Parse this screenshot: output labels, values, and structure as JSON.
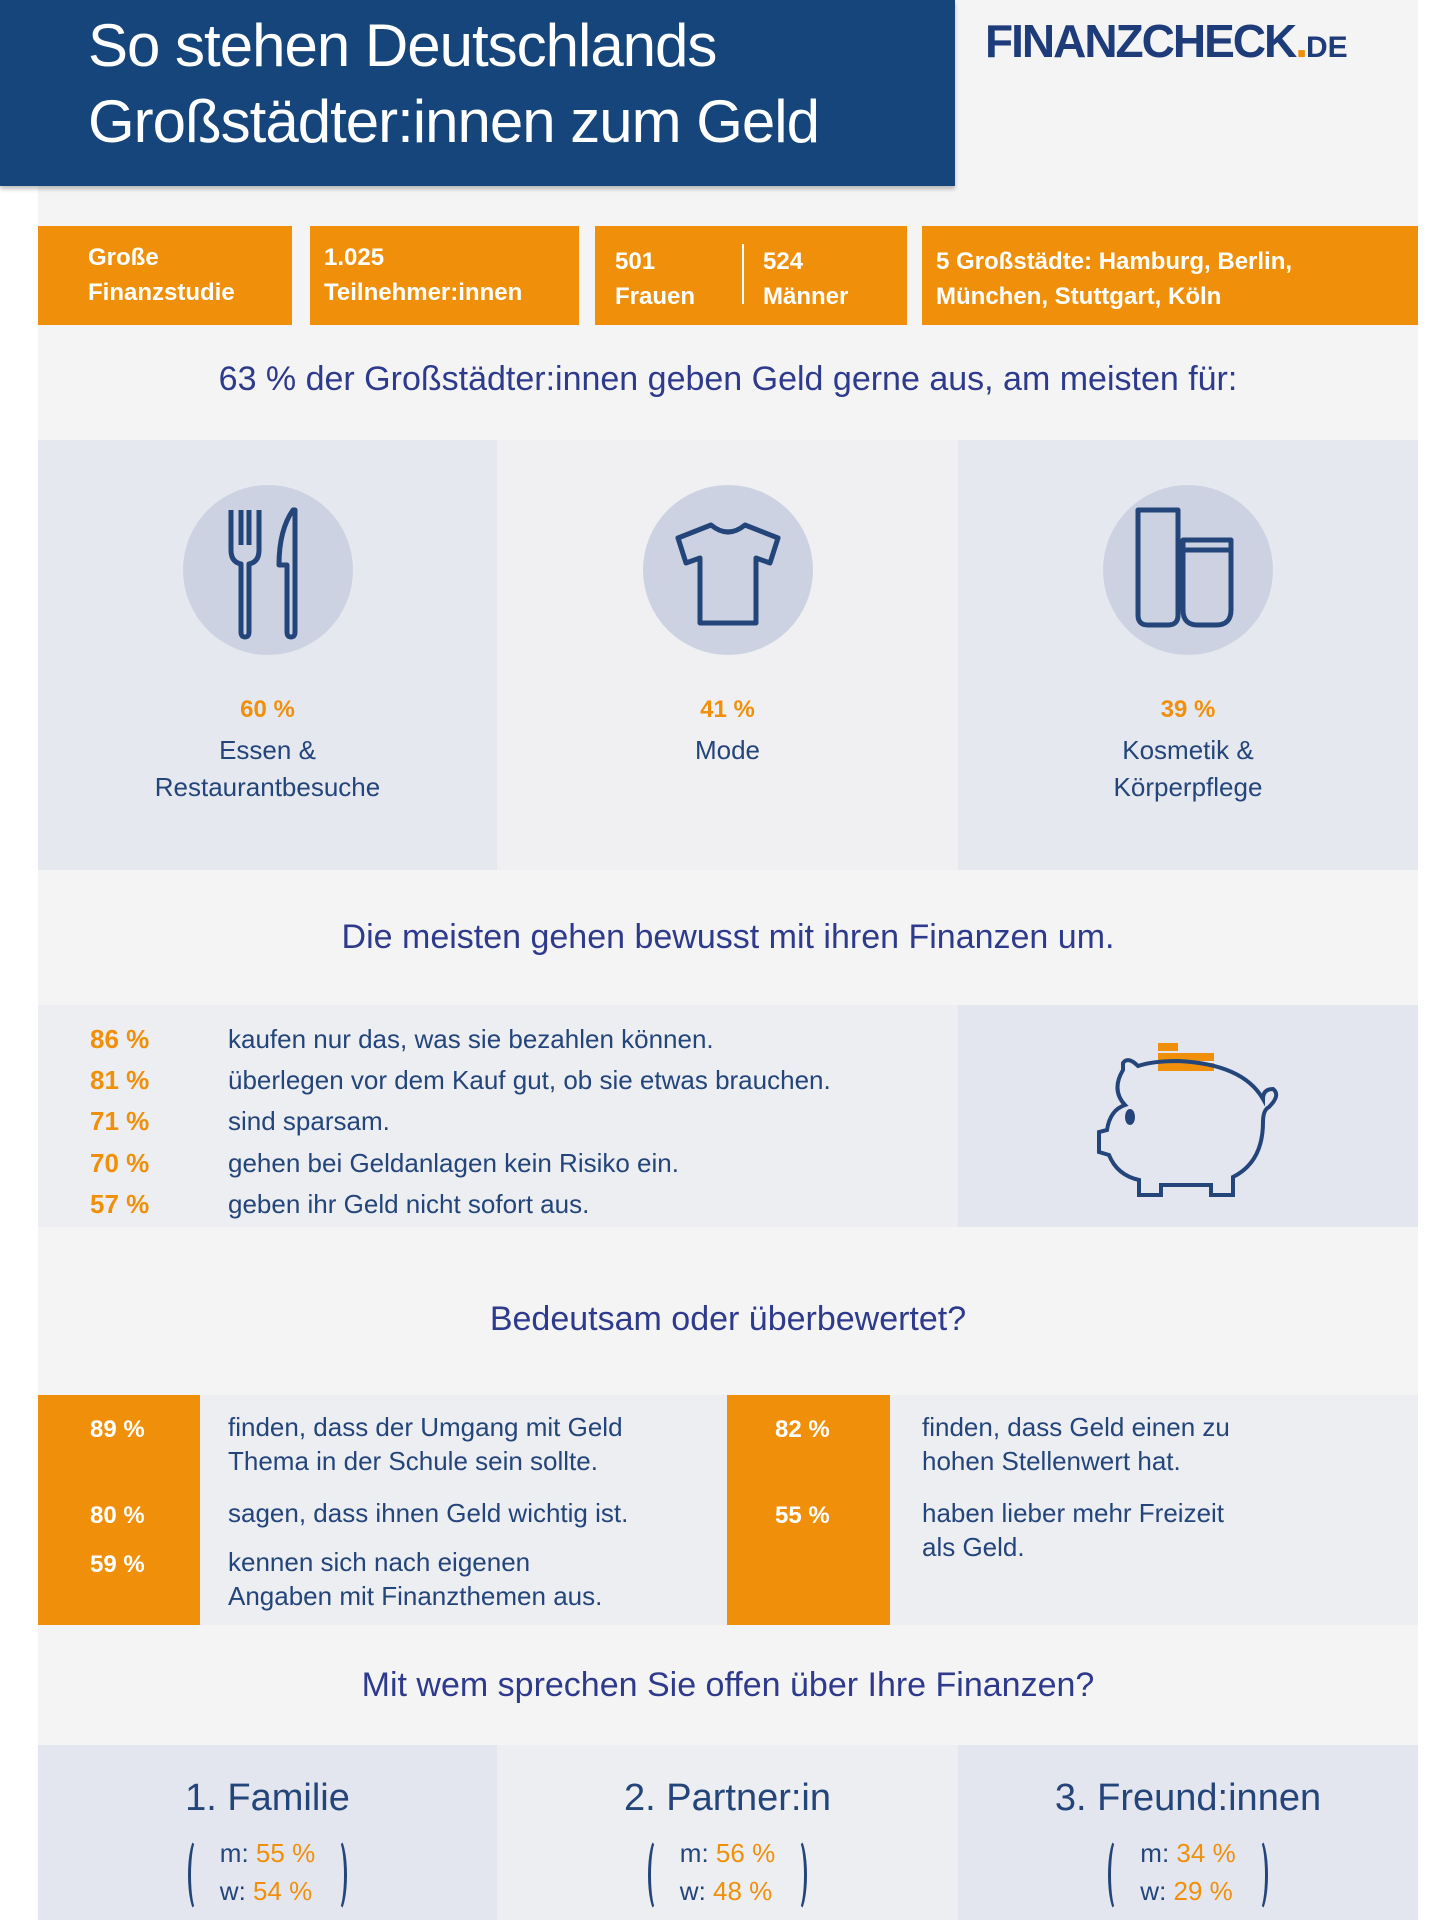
{
  "header": {
    "title_line1": "So stehen Deutschlands",
    "title_line2": "Großstädter:innen zum Geld"
  },
  "logo": {
    "name": "FINANZCHECK",
    "dot": ".",
    "tld": "DE"
  },
  "facts": {
    "study_l1": "Große",
    "study_l2": "Finanzstudie",
    "participants_l1": "1.025",
    "participants_l2": "Teilnehmer:innen",
    "women_n": "501",
    "women_l": "Frauen",
    "men_n": "524",
    "men_l": "Männer",
    "cities_l1": "5 Großstädte: Hamburg, Berlin,",
    "cities_l2": "München, Stuttgart, Köln"
  },
  "spending": {
    "heading": "63 % der Großstädter:innen geben Geld gerne aus, am meisten für:",
    "items": [
      {
        "icon": "cutlery-icon",
        "pct": "60 %",
        "l1": "Essen &",
        "l2": "Restaurantbesuche"
      },
      {
        "icon": "tshirt-icon",
        "pct": "41 %",
        "l1": "Mode",
        "l2": ""
      },
      {
        "icon": "cosmetics-icon",
        "pct": "39 %",
        "l1": "Kosmetik &",
        "l2": "Körperpflege"
      }
    ]
  },
  "conscious": {
    "heading": "Die meisten gehen bewusst mit ihren Finanzen um.",
    "rows": [
      {
        "pct": "86 %",
        "text": "kaufen nur das, was sie bezahlen können."
      },
      {
        "pct": "81 %",
        "text": "überlegen vor dem Kauf gut, ob sie etwas brauchen."
      },
      {
        "pct": "71 %",
        "text": "sind sparsam."
      },
      {
        "pct": "70 %",
        "text": "gehen bei Geldanlagen kein Risiko ein."
      },
      {
        "pct": "57 %",
        "text": "geben ihr Geld nicht sofort aus."
      }
    ]
  },
  "importance": {
    "heading": "Bedeutsam oder überbewertet?",
    "left": [
      {
        "pct": "89 %",
        "l1": "finden, dass der Umgang mit Geld",
        "l2": "Thema in der Schule sein sollte."
      },
      {
        "pct": "80 %",
        "l1": "sagen, dass ihnen Geld wichtig ist.",
        "l2": ""
      },
      {
        "pct": "59 %",
        "l1": "kennen sich nach eigenen",
        "l2": "Angaben mit Finanzthemen aus."
      }
    ],
    "right": [
      {
        "pct": "82 %",
        "l1": "finden, dass Geld einen zu",
        "l2": "hohen Stellenwert hat."
      },
      {
        "pct": "55 %",
        "l1": "haben lieber mehr Freizeit",
        "l2": "als Geld."
      }
    ]
  },
  "talk": {
    "heading": "Mit wem sprechen Sie offen über Ihre Finanzen?",
    "items": [
      {
        "name": "1. Familie",
        "m": "55 %",
        "w": "54 %"
      },
      {
        "name": "2. Partner:in",
        "m": "56 %",
        "w": "48 %"
      },
      {
        "name": "3. Freund:innen",
        "m": "34 %",
        "w": "29 %"
      }
    ],
    "m_label": "m:",
    "w_label": "w:"
  },
  "colors": {
    "navy": "#15457a",
    "orange": "#f0900a",
    "text": "#2e3a8c"
  }
}
